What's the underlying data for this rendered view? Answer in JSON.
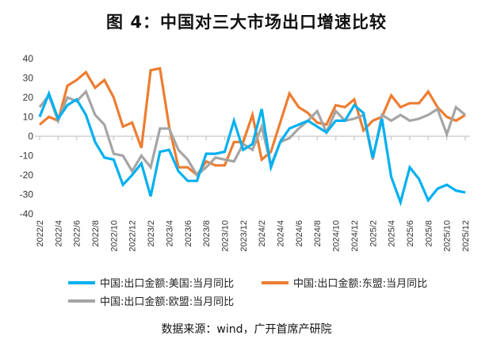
{
  "chart_data": {
    "type": "line",
    "title": "图 4：中国对三大市场出口增速比较",
    "source": "数据来源：wind，广开首席产研院",
    "ylim": [
      -40,
      40
    ],
    "yticks": [
      40,
      30,
      20,
      10,
      0,
      -10,
      -20,
      -30,
      -40
    ],
    "x": [
      "2022/2",
      "2022/3",
      "2022/4",
      "2022/5",
      "2022/6",
      "2022/7",
      "2022/8",
      "2022/9",
      "2022/10",
      "2022/11",
      "2022/12",
      "2023/1",
      "2023/2",
      "2023/3",
      "2023/4",
      "2023/5",
      "2023/6",
      "2023/7",
      "2023/8",
      "2023/9",
      "2023/10",
      "2023/11",
      "2023/12",
      "2024/1",
      "2024/2",
      "2024/3",
      "2024/4",
      "2024/5",
      "2024/6",
      "2024/7",
      "2024/8",
      "2024/9",
      "2024/10",
      "2024/11",
      "2024/12",
      "2025/1",
      "2025/2",
      "2025/3",
      "2025/4",
      "2025/5",
      "2025/6",
      "2025/7",
      "2025/8",
      "2025/9",
      "2025/10",
      "2025/11",
      "2025/12"
    ],
    "xtick_labels": [
      "2022/2",
      "2022/4",
      "2022/6",
      "2022/8",
      "2022/10",
      "2022/12",
      "2023/2",
      "2023/4",
      "2023/6",
      "2023/8",
      "2023/10",
      "2023/12",
      "2024/2",
      "2024/4",
      "2024/6",
      "2024/8",
      "2024/10",
      "2024/12",
      "2025/2",
      "2025/4",
      "2025/6",
      "2025/8",
      "2025/10",
      "2025/12"
    ],
    "legend_placement": "bottom",
    "series": [
      {
        "name": "中国:出口金额:美国:当月同比",
        "color": "#00b0f0",
        "values": [
          10,
          22,
          9,
          16,
          19,
          11,
          -3,
          -11,
          -12,
          -25,
          -20,
          -14,
          -31,
          -8,
          -7,
          -18,
          -23,
          -23,
          -9,
          -9,
          -8,
          8,
          -7,
          -4,
          14,
          -16,
          -3,
          4,
          6,
          8,
          5,
          2,
          8,
          8,
          16,
          12,
          -11,
          9,
          -21,
          -34,
          -16,
          -22,
          -33,
          -27,
          -25,
          -28,
          -29
        ]
      },
      {
        "name": "中国:出口金额:东盟:当月同比",
        "color": "#ed7d31",
        "values": [
          6,
          10,
          8,
          26,
          29,
          33,
          25,
          29,
          20,
          5,
          7,
          -6,
          34,
          35,
          5,
          -16,
          -16,
          -20,
          -13,
          -15,
          -15,
          -3,
          -3,
          11,
          -12,
          -8,
          7,
          22,
          15,
          12,
          7,
          6,
          16,
          15,
          19,
          3,
          8,
          10,
          21,
          15,
          17,
          17,
          23,
          15,
          10,
          8,
          11
        ]
      },
      {
        "name": "中国:出口金额:欧盟:当月同比",
        "color": "#a5a5a5",
        "values": [
          15,
          21,
          8,
          20,
          18,
          23,
          11,
          6,
          -9,
          -10,
          -18,
          -10,
          -16,
          4,
          4,
          -7,
          -12,
          -20,
          -16,
          -11,
          -12,
          -13,
          -4,
          -7,
          5,
          -15,
          -3,
          -1,
          4,
          8,
          13,
          2,
          13,
          8,
          9,
          11,
          -12,
          11,
          8,
          11,
          8,
          9,
          11,
          14,
          1,
          15,
          11
        ]
      }
    ]
  }
}
